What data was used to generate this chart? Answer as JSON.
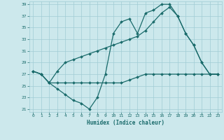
{
  "xlabel": "Humidex (Indice chaleur)",
  "bg_color": "#cce8ec",
  "grid_color": "#a0ccd4",
  "line_color": "#1a6b6b",
  "xlim": [
    -0.5,
    23.5
  ],
  "ylim": [
    20.5,
    39.5
  ],
  "xticks": [
    0,
    1,
    2,
    3,
    4,
    5,
    6,
    7,
    8,
    9,
    10,
    11,
    12,
    13,
    14,
    15,
    16,
    17,
    18,
    19,
    20,
    21,
    22,
    23
  ],
  "yticks": [
    21,
    23,
    25,
    27,
    29,
    31,
    33,
    35,
    37,
    39
  ],
  "curve1_x": [
    0,
    1,
    2,
    3,
    4,
    5,
    6,
    7,
    8,
    9,
    10,
    11,
    12,
    13,
    14,
    15,
    16,
    17,
    18,
    19,
    20,
    21,
    22,
    23
  ],
  "curve1_y": [
    27.5,
    27.0,
    25.5,
    24.5,
    23.5,
    22.5,
    22.0,
    21.0,
    23.0,
    27.0,
    34.0,
    36.0,
    36.5,
    34.0,
    37.5,
    38.0,
    39.0,
    39.0,
    37.0,
    34.0,
    32.0,
    29.0,
    27.0,
    27.0
  ],
  "curve2_x": [
    0,
    1,
    2,
    3,
    4,
    5,
    6,
    7,
    8,
    9,
    10,
    11,
    12,
    13,
    14,
    15,
    16,
    17,
    18,
    19,
    20,
    21,
    22,
    23
  ],
  "curve2_y": [
    27.5,
    27.0,
    25.5,
    27.5,
    29.0,
    29.5,
    30.0,
    30.5,
    31.0,
    31.5,
    32.0,
    32.5,
    33.0,
    33.5,
    34.5,
    36.0,
    37.5,
    38.5,
    37.0,
    34.0,
    32.0,
    29.0,
    27.0,
    27.0
  ],
  "curve3_x": [
    0,
    1,
    2,
    3,
    4,
    5,
    6,
    7,
    8,
    9,
    10,
    11,
    12,
    13,
    14,
    15,
    16,
    17,
    18,
    19,
    20,
    21,
    22,
    23
  ],
  "curve3_y": [
    27.5,
    27.0,
    25.5,
    25.5,
    25.5,
    25.5,
    25.5,
    25.5,
    25.5,
    25.5,
    25.5,
    25.5,
    26.0,
    26.5,
    27.0,
    27.0,
    27.0,
    27.0,
    27.0,
    27.0,
    27.0,
    27.0,
    27.0,
    27.0
  ]
}
